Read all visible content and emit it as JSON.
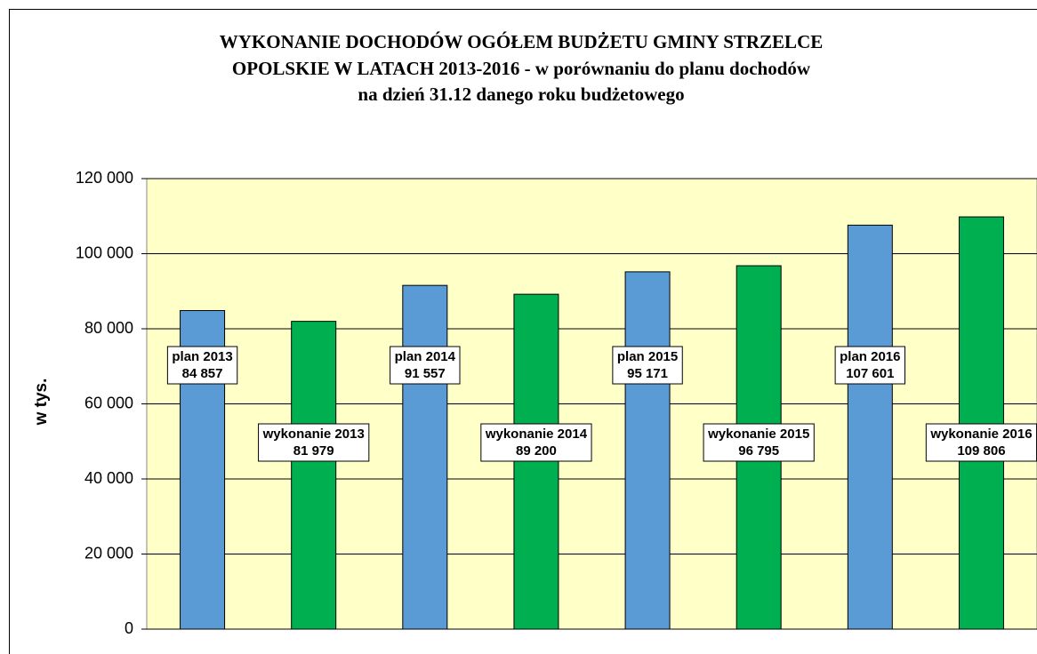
{
  "chart_data": {
    "type": "bar",
    "title": [
      "WYKONANIE  DOCHODÓW  OGÓŁEM  BUDŻETU  GMINY  STRZELCE",
      "OPOLSKIE  W  LATACH  2013-2016 - w porównaniu  do planu  dochodów",
      "na dzień  31.12 danego roku budżetowego"
    ],
    "y_label": "w tys.",
    "categories": [
      "plan 2013",
      "wykonanie 2013",
      "plan 2014",
      "wykonanie 2014",
      "plan 2015",
      "wykonanie 2015",
      "plan 2016",
      "wykonanie 2016"
    ],
    "values": [
      84857,
      81979,
      91557,
      89200,
      95171,
      96795,
      107601,
      109806
    ],
    "value_labels": [
      "84 857",
      "81 979",
      "91 557",
      "89 200",
      "95 171",
      "96 795",
      "107 601",
      "109 806"
    ],
    "colors": [
      "#5b9bd5",
      "#00b050",
      "#5b9bd5",
      "#00b050",
      "#5b9bd5",
      "#00b050",
      "#5b9bd5",
      "#00b050"
    ],
    "ylim": [
      0,
      120000
    ],
    "yticks": [
      0,
      {
        "value": 20000,
        "label": "20 000"
      },
      {
        "value": 40000,
        "label": "40 000"
      },
      {
        "value": 60000,
        "label": "60 000"
      },
      {
        "value": 80000,
        "label": "80 000"
      },
      {
        "value": 100000,
        "label": "100 000"
      },
      {
        "value": 120000,
        "label": "120 000"
      }
    ],
    "grid": true,
    "background": "#ffffc8"
  }
}
